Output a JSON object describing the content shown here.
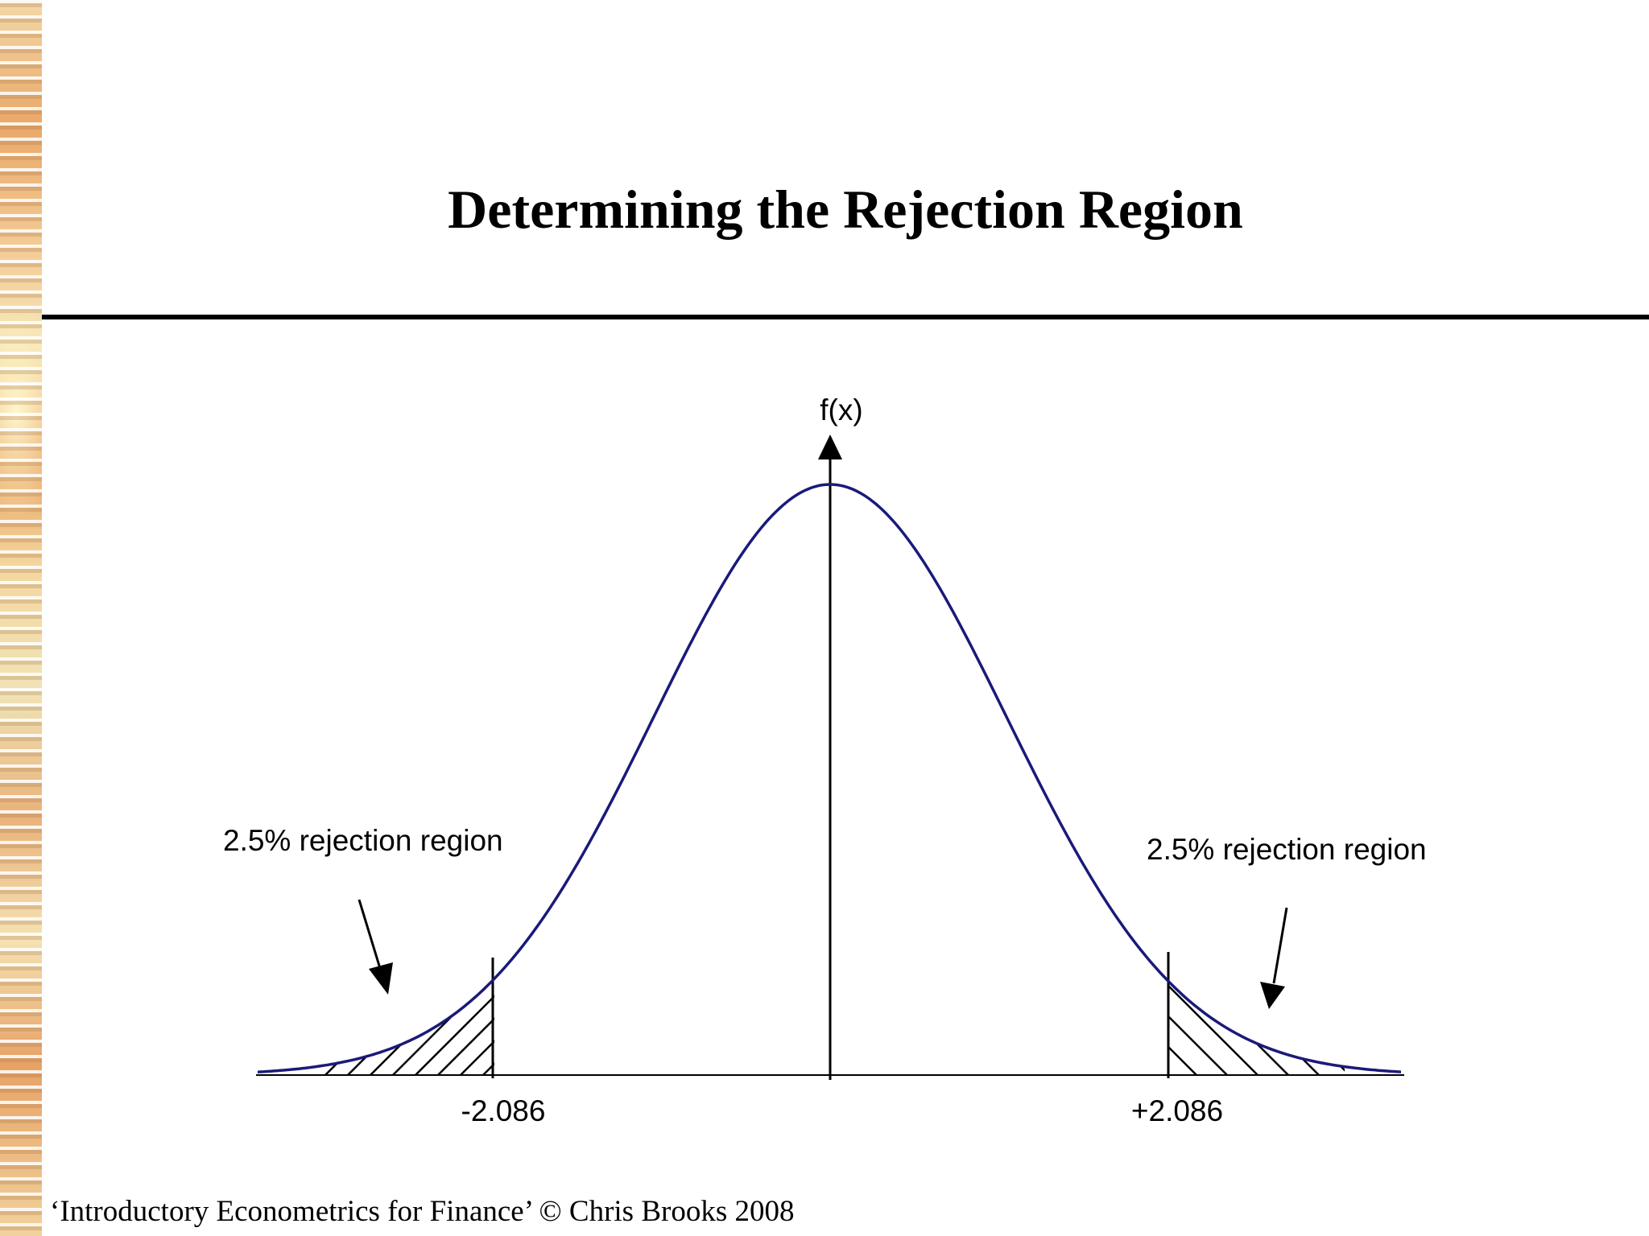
{
  "slide": {
    "title": "Determining the Rejection Region",
    "footer": "‘Introductory Econometrics for Finance’ © Chris Brooks 2008"
  },
  "diagram": {
    "y_axis_label": "f(x)",
    "left_region_label": "2.5% rejection region",
    "right_region_label": "2.5% rejection region",
    "left_critical_value": "-2.086",
    "right_critical_value": "+2.086",
    "curve_color": "#1a1a7a",
    "line_color": "#000000"
  }
}
